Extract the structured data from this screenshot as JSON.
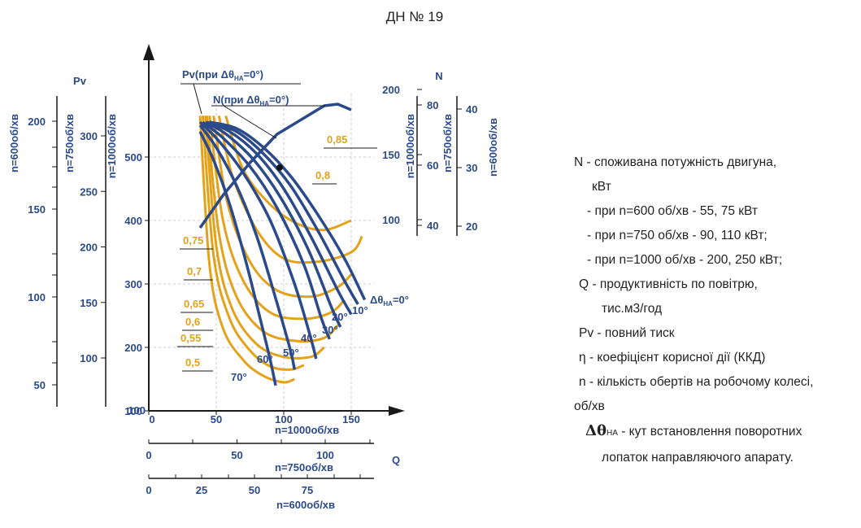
{
  "chart_data": {
    "type": "line",
    "title": "ДН № 19",
    "x_axis": {
      "label": "Q",
      "scales": [
        {
          "speed_label": "n=1000об/хв",
          "ticks": [
            "0",
            "50",
            "100",
            "150"
          ],
          "values": [
            0,
            50,
            100,
            150
          ]
        },
        {
          "speed_label": "n=750об/хв",
          "ticks": [
            "0",
            "50",
            "100"
          ],
          "values": [
            0,
            50,
            100
          ]
        },
        {
          "speed_label": "n=600об/хв",
          "ticks": [
            "0",
            "25",
            "50",
            "75"
          ],
          "values": [
            0,
            25,
            50,
            75
          ]
        }
      ]
    },
    "pv_axes": {
      "label": "Pv",
      "scales": [
        {
          "speed_label": "n=1000об/хв",
          "ticks": [
            "100",
            "200",
            "300",
            "400",
            "500"
          ]
        },
        {
          "speed_label": "n=750об/хв",
          "ticks": [
            "100",
            "150",
            "200",
            "250",
            "300"
          ]
        },
        {
          "speed_label": "n=600об/хв",
          "ticks": [
            "50",
            "100",
            "150",
            "200"
          ]
        }
      ]
    },
    "n_axes": {
      "label": "N",
      "scales": [
        {
          "speed_label": "n=1000об/хв",
          "ticks": [
            "100",
            "150",
            "200"
          ]
        },
        {
          "speed_label": "n=750об/хв",
          "ticks": [
            "40",
            "60",
            "80"
          ]
        },
        {
          "speed_label": "n=600об/хв",
          "ticks": [
            "20",
            "30",
            "40"
          ]
        }
      ]
    },
    "annotations": {
      "pv_curves": "Pv(при Δθ",
      "pv_curves_tail": "=0°)",
      "n_curves": "N(при Δθ",
      "n_curves_tail": "=0°)",
      "sub": "НА",
      "dtheta_zero": "Δθ",
      "dtheta_zero_tail": "=0°"
    },
    "series_pv": [
      {
        "name": "0°",
        "x": [
          45,
          65,
          85,
          105,
          125,
          145,
          160
        ],
        "y": [
          555,
          545,
          515,
          470,
          410,
          340,
          275
        ]
      },
      {
        "name": "10°",
        "x": [
          45,
          65,
          85,
          105,
          125,
          145,
          155
        ],
        "y": [
          555,
          540,
          505,
          455,
          385,
          305,
          268
        ]
      },
      {
        "name": "20°",
        "x": [
          43,
          60,
          80,
          100,
          120,
          140,
          150
        ],
        "y": [
          555,
          540,
          505,
          450,
          375,
          290,
          252
        ]
      },
      {
        "name": "30°",
        "x": [
          42,
          58,
          78,
          98,
          118,
          135,
          142
        ],
        "y": [
          555,
          535,
          495,
          435,
          355,
          265,
          232
        ]
      },
      {
        "name": "40°",
        "x": [
          40,
          55,
          75,
          95,
          115,
          128,
          134
        ],
        "y": [
          555,
          530,
          485,
          420,
          330,
          245,
          213
        ]
      },
      {
        "name": "50°",
        "x": [
          38,
          52,
          70,
          90,
          108,
          120,
          124
        ],
        "y": [
          555,
          525,
          475,
          400,
          300,
          215,
          182
        ]
      },
      {
        "name": "60°",
        "x": [
          38,
          50,
          65,
          80,
          95,
          105,
          108
        ],
        "y": [
          550,
          515,
          455,
          375,
          270,
          195,
          165
        ]
      },
      {
        "name": "70°",
        "x": [
          38,
          48,
          60,
          72,
          82,
          90,
          94
        ],
        "y": [
          540,
          495,
          425,
          335,
          250,
          180,
          140
        ]
      }
    ],
    "series_eta": [
      {
        "name": "0,85",
        "x": [
          57,
          70,
          90,
          110,
          130,
          150
        ],
        "y": [
          565,
          480,
          425,
          395,
          385,
          400
        ]
      },
      {
        "name": "0,8",
        "x": [
          52,
          62,
          80,
          100,
          125,
          150,
          158
        ],
        "y": [
          565,
          470,
          385,
          340,
          335,
          350,
          375
        ]
      },
      {
        "name": "0,75",
        "x": [
          48,
          58,
          75,
          95,
          120,
          140,
          150
        ],
        "y": [
          565,
          430,
          335,
          290,
          280,
          295,
          315
        ]
      },
      {
        "name": "0,7",
        "x": [
          45,
          55,
          70,
          90,
          115,
          135,
          145
        ],
        "y": [
          565,
          400,
          305,
          255,
          245,
          255,
          275
        ]
      },
      {
        "name": "0,65",
        "x": [
          43,
          52,
          65,
          85,
          110,
          130,
          140
        ],
        "y": [
          565,
          380,
          280,
          225,
          210,
          215,
          235
        ]
      },
      {
        "name": "0,6",
        "x": [
          42,
          50,
          62,
          80,
          100,
          120,
          130
        ],
        "y": [
          565,
          360,
          260,
          205,
          185,
          185,
          200
        ]
      },
      {
        "name": "0,55",
        "x": [
          40,
          48,
          60,
          75,
          90,
          105,
          115
        ],
        "y": [
          565,
          345,
          245,
          195,
          170,
          165,
          172
        ]
      },
      {
        "name": "0,5",
        "x": [
          38,
          45,
          55,
          70,
          85,
          100,
          108
        ],
        "y": [
          565,
          330,
          230,
          180,
          155,
          145,
          150
        ]
      }
    ],
    "series_power": {
      "name": "N",
      "x": [
        40,
        60,
        80,
        100,
        120,
        140,
        155,
        160
      ],
      "y": [
        50,
        90,
        120,
        145,
        170,
        195,
        200,
        195
      ]
    },
    "angle_labels": [
      "10°",
      "20°",
      "30°",
      "40°",
      "50°",
      "60°",
      "70°"
    ],
    "xlim": [
      0,
      165
    ],
    "ylim": [
      100,
      600
    ]
  },
  "legend": {
    "line1": "N - споживана потужність двигуна,",
    "line2": "кВт",
    "line3": "- при n=600 об/хв - 55, 75 кВт",
    "line4": "- при n=750 об/хв - 90, 110 кВт;",
    "line5": "- при n=1000 об/хв - 200, 250 кВт;",
    "line6": "Q - продуктивність по повітрю,",
    "line7": "тис.м3/год",
    "line8": "Pv - повний тиск",
    "line9": "η - коефіцієнт корисної дії (ККД)",
    "line10": "n - кількість обертів на робочому колесі,",
    "line11": "об/хв",
    "line12_sym": "Δθ",
    "line12_sub": "НА",
    "line12": " - кут встановлення поворотних",
    "line13": "лопаток направляючого апарату."
  },
  "colors": {
    "curve_blue": "#2b4a8c",
    "eta_yellow": "#e3a21a",
    "axis": "#1a1a1a",
    "grid": "#cccccc"
  }
}
